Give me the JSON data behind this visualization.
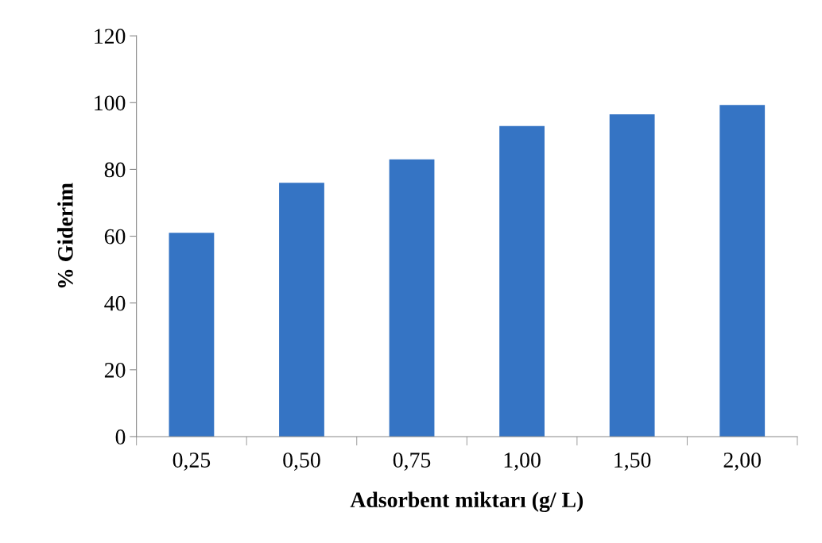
{
  "chart_data": {
    "type": "bar",
    "xlabel": "Adsorbent miktarı (g/ L)",
    "ylabel": "% Giderim",
    "categories": [
      "0,25",
      "0,50",
      "0,75",
      "1,00",
      "1,50",
      "2,00"
    ],
    "values": [
      61,
      76,
      83,
      93,
      96.5,
      99.3
    ],
    "color": "#3574c4",
    "ylim": [
      0,
      120
    ],
    "yticks": [
      0,
      20,
      40,
      60,
      80,
      100,
      120
    ],
    "grid": false,
    "legend": false
  }
}
